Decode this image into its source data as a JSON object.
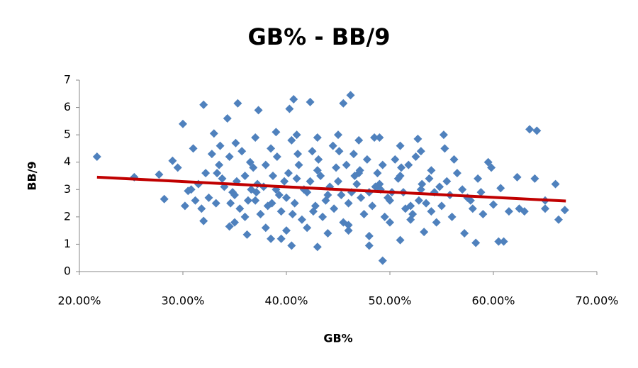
{
  "chart_data": {
    "type": "scatter",
    "title": "GB% - BB/9",
    "x_label": "GB%",
    "y_label": "BB/9",
    "xlim": [
      20,
      70
    ],
    "xticks": [
      {
        "value": 20,
        "label": "20.00%"
      },
      {
        "value": 30,
        "label": "30.00%"
      },
      {
        "value": 40,
        "label": "40.00%"
      },
      {
        "value": 50,
        "label": "50.00%"
      },
      {
        "value": 60,
        "label": "60.00%"
      },
      {
        "value": 70,
        "label": "70.00%"
      }
    ],
    "ylim": [
      0,
      7
    ],
    "yticks": [
      0,
      1,
      2,
      3,
      4,
      5,
      6,
      7
    ],
    "series": [
      {
        "color": "#4f81bd",
        "x": [
          21.7,
          25.3,
          27.7,
          28.2,
          29,
          29.5,
          30,
          30.2,
          30.5,
          31,
          32,
          32,
          33,
          35.3,
          37.3,
          34.3,
          40.3,
          40.7,
          42.3,
          45.5,
          46.2,
          49.3,
          40.5,
          43,
          48,
          63.5,
          64.2,
          66.3,
          66.9,
          66,
          60.5,
          61,
          58.3,
          57.2,
          60.7,
          62.3,
          64,
          59.5,
          59.8,
          56.2,
          55.2,
          52.7,
          53.3,
          51,
          46,
          36.2,
          34.5,
          38.5,
          39.5,
          35,
          63,
          65,
          62.5,
          61.5,
          65,
          58,
          57.5,
          59,
          56,
          54.5,
          60,
          31.5,
          32.5,
          33.5,
          31.8,
          32.8,
          30.8,
          33.2,
          31.2,
          32.2,
          34,
          35,
          36,
          37,
          38,
          39,
          40,
          41,
          42,
          43,
          44,
          45,
          46,
          47,
          48,
          49,
          50,
          51,
          52,
          53,
          34.5,
          35.5,
          36.5,
          37.5,
          38.5,
          39.5,
          40.5,
          41.5,
          42.5,
          43.5,
          44.5,
          45.5,
          46.5,
          47.5,
          48.5,
          49.5,
          50.5,
          51.5,
          52.5,
          53.5,
          35.2,
          36.8,
          38.2,
          39.8,
          41.2,
          42.8,
          44.2,
          45.8,
          47.2,
          48.8,
          50.2,
          51.8,
          53.8,
          54.8,
          55.8,
          36,
          38,
          40,
          42,
          44,
          46,
          48,
          50,
          52,
          54,
          37,
          39,
          41,
          43,
          45,
          47,
          49,
          51,
          53,
          33.8,
          34.8,
          36.3,
          37.8,
          39.3,
          40.8,
          42.3,
          43.8,
          45.3,
          46.8,
          48.3,
          49.8,
          51.3,
          52.8,
          54.3,
          55.5,
          41.7,
          43.3,
          44.8,
          46.3,
          47.8,
          49.3,
          40.2,
          38.7,
          37.2,
          35.7,
          56.5,
          57,
          58.5,
          54,
          55,
          52.2,
          50.8,
          48.6,
          46.6,
          44.6,
          42.6,
          40.6,
          38.6,
          36.6,
          34.6,
          33.3,
          39.1,
          43.1,
          47.1,
          51.1,
          55.3,
          45.1,
          41.1,
          37.1,
          49.1,
          53.1,
          35.1,
          33.6,
          57.8,
          58.8
        ],
        "values": [
          4.2,
          3.45,
          3.55,
          2.65,
          4.05,
          3.8,
          5.4,
          2.4,
          2.95,
          4.5,
          6.1,
          1.85,
          5.05,
          6.15,
          5.9,
          5.6,
          5.95,
          6.3,
          6.2,
          6.15,
          6.45,
          0.4,
          0.95,
          0.9,
          0.95,
          5.2,
          5.15,
          1.9,
          2.25,
          3.2,
          1.1,
          1.1,
          1.05,
          1.4,
          3.05,
          3.45,
          3.4,
          4.0,
          3.8,
          4.1,
          5.0,
          4.85,
          1.45,
          1.15,
          1.5,
          1.35,
          1.65,
          1.2,
          1.2,
          1.8,
          2.2,
          2.3,
          2.3,
          2.2,
          2.6,
          2.3,
          2.7,
          2.1,
          2.0,
          1.8,
          2.45,
          3.2,
          2.7,
          3.9,
          2.3,
          4.3,
          3.0,
          2.5,
          2.6,
          3.6,
          3.1,
          2.8,
          3.5,
          2.6,
          3.9,
          3.0,
          2.7,
          3.4,
          2.9,
          3.7,
          2.8,
          3.3,
          2.5,
          3.6,
          2.9,
          3.2,
          2.6,
          3.5,
          2.4,
          3.0,
          4.2,
          2.3,
          4.0,
          2.1,
          4.5,
          2.2,
          4.8,
          1.9,
          4.4,
          2.0,
          4.6,
          1.8,
          4.3,
          2.1,
          4.9,
          2.0,
          4.1,
          2.3,
          4.2,
          2.5,
          3.3,
          3.8,
          2.4,
          3.3,
          3.9,
          2.4,
          3.1,
          3.9,
          2.7,
          3.6,
          2.9,
          3.9,
          3.4,
          3.1,
          2.8,
          2.0,
          1.6,
          1.5,
          1.6,
          1.4,
          1.7,
          1.3,
          1.8,
          1.9,
          3.7,
          4.9,
          5.1,
          5.0,
          4.9,
          5.0,
          4.8,
          4.9,
          4.6,
          4.4,
          3.4,
          2.9,
          2.6,
          3.1,
          2.8,
          2.5,
          3.3,
          2.6,
          2.8,
          3.2,
          2.4,
          2.7,
          2.9,
          2.6,
          2.9,
          3.3,
          3.0,
          3.5,
          3.8,
          2.9,
          4.1,
          3.9,
          3.6,
          3.5,
          3.2,
          4.4,
          3.6,
          3.0,
          3.4,
          2.2,
          2.4,
          2.1,
          3.4,
          3.1,
          3.5,
          2.3,
          2.2,
          2.1,
          2.5,
          3.0,
          2.5,
          3.6,
          4.2,
          4.1,
          3.7,
          3.8,
          4.5,
          4.4,
          4.3,
          2.9,
          3.0,
          3.2,
          4.7,
          4.6,
          2.6,
          2.9
        ]
      }
    ],
    "trendline": {
      "color": "#c00000",
      "x": [
        21.7,
        67
      ],
      "values": [
        3.45,
        2.58
      ]
    }
  }
}
